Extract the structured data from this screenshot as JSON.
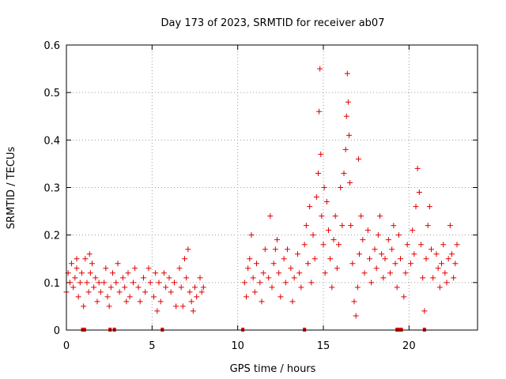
{
  "chart_data": {
    "type": "scatter",
    "title": "Day 173 of 2023, SRMTID for receiver ab07",
    "xlabel": "GPS time / hours",
    "ylabel": "SRMTID / TECUs",
    "xlim": [
      0,
      24
    ],
    "ylim": [
      0,
      0.6
    ],
    "xticks": [
      "0",
      "5",
      "10",
      "15",
      "20"
    ],
    "yticks": [
      "0",
      "0.1",
      "0.2",
      "0.3",
      "0.4",
      "0.5",
      "0.6"
    ],
    "grid": true,
    "marker": "+",
    "color": "#e00000",
    "series": [
      {
        "name": "SRMTID",
        "points": [
          [
            0.0,
            0.08
          ],
          [
            0.1,
            0.12
          ],
          [
            0.2,
            0.1
          ],
          [
            0.3,
            0.14
          ],
          [
            0.4,
            0.09
          ],
          [
            0.5,
            0.11
          ],
          [
            0.6,
            0.13
          ],
          [
            0.7,
            0.07
          ],
          [
            0.8,
            0.1
          ],
          [
            0.9,
            0.12
          ],
          [
            1.1,
            0.15
          ],
          [
            1.2,
            0.1
          ],
          [
            1.3,
            0.08
          ],
          [
            1.4,
            0.12
          ],
          [
            1.5,
            0.14
          ],
          [
            1.6,
            0.09
          ],
          [
            1.7,
            0.11
          ],
          [
            1.8,
            0.06
          ],
          [
            1.9,
            0.1
          ],
          [
            2.0,
            0.08
          ],
          [
            2.2,
            0.1
          ],
          [
            2.3,
            0.13
          ],
          [
            2.4,
            0.07
          ],
          [
            2.6,
            0.09
          ],
          [
            2.7,
            0.12
          ],
          [
            2.9,
            0.1
          ],
          [
            3.0,
            0.14
          ],
          [
            3.1,
            0.08
          ],
          [
            3.3,
            0.11
          ],
          [
            3.4,
            0.09
          ],
          [
            3.6,
            0.12
          ],
          [
            3.7,
            0.07
          ],
          [
            3.9,
            0.1
          ],
          [
            4.0,
            0.13
          ],
          [
            4.2,
            0.09
          ],
          [
            4.3,
            0.06
          ],
          [
            4.5,
            0.11
          ],
          [
            4.6,
            0.08
          ],
          [
            4.8,
            0.13
          ],
          [
            4.9,
            0.1
          ],
          [
            5.1,
            0.07
          ],
          [
            5.2,
            0.12
          ],
          [
            5.4,
            0.1
          ],
          [
            5.5,
            0.06
          ],
          [
            5.7,
            0.12
          ],
          [
            5.8,
            0.09
          ],
          [
            6.0,
            0.11
          ],
          [
            6.1,
            0.08
          ],
          [
            6.3,
            0.1
          ],
          [
            6.4,
            0.05
          ],
          [
            6.6,
            0.13
          ],
          [
            6.7,
            0.09
          ],
          [
            6.9,
            0.15
          ],
          [
            7.0,
            0.11
          ],
          [
            7.1,
            0.17
          ],
          [
            7.2,
            0.08
          ],
          [
            7.3,
            0.06
          ],
          [
            7.5,
            0.09
          ],
          [
            7.6,
            0.07
          ],
          [
            7.8,
            0.11
          ],
          [
            7.9,
            0.08
          ],
          [
            8.0,
            0.09
          ],
          [
            7.4,
            0.04
          ],
          [
            6.8,
            0.05
          ],
          [
            5.3,
            0.04
          ],
          [
            3.5,
            0.06
          ],
          [
            2.5,
            0.05
          ],
          [
            1.0,
            0.05
          ],
          [
            0.6,
            0.15
          ],
          [
            1.35,
            0.16
          ],
          [
            10.4,
            0.1
          ],
          [
            10.5,
            0.07
          ],
          [
            10.6,
            0.13
          ],
          [
            10.7,
            0.15
          ],
          [
            10.8,
            0.2
          ],
          [
            10.9,
            0.11
          ],
          [
            11.0,
            0.08
          ],
          [
            11.1,
            0.14
          ],
          [
            11.3,
            0.1
          ],
          [
            11.4,
            0.06
          ],
          [
            11.5,
            0.12
          ],
          [
            11.6,
            0.17
          ],
          [
            11.8,
            0.11
          ],
          [
            11.9,
            0.24
          ],
          [
            12.0,
            0.09
          ],
          [
            12.1,
            0.14
          ],
          [
            12.3,
            0.19
          ],
          [
            12.4,
            0.12
          ],
          [
            12.5,
            0.07
          ],
          [
            12.7,
            0.15
          ],
          [
            12.8,
            0.1
          ],
          [
            12.9,
            0.17
          ],
          [
            13.1,
            0.13
          ],
          [
            13.2,
            0.06
          ],
          [
            13.3,
            0.11
          ],
          [
            13.5,
            0.16
          ],
          [
            13.6,
            0.12
          ],
          [
            13.7,
            0.09
          ],
          [
            13.9,
            0.18
          ],
          [
            14.0,
            0.22
          ],
          [
            14.1,
            0.14
          ],
          [
            14.2,
            0.26
          ],
          [
            14.3,
            0.1
          ],
          [
            14.4,
            0.2
          ],
          [
            14.5,
            0.15
          ],
          [
            14.6,
            0.28
          ],
          [
            14.7,
            0.33
          ],
          [
            14.75,
            0.46
          ],
          [
            14.8,
            0.55
          ],
          [
            14.85,
            0.37
          ],
          [
            14.9,
            0.24
          ],
          [
            15.0,
            0.18
          ],
          [
            15.1,
            0.12
          ],
          [
            15.2,
            0.27
          ],
          [
            15.3,
            0.21
          ],
          [
            15.4,
            0.15
          ],
          [
            15.5,
            0.09
          ],
          [
            15.6,
            0.19
          ],
          [
            15.7,
            0.24
          ],
          [
            15.8,
            0.13
          ],
          [
            15.9,
            0.18
          ],
          [
            16.0,
            0.3
          ],
          [
            16.1,
            0.22
          ],
          [
            16.2,
            0.33
          ],
          [
            16.3,
            0.38
          ],
          [
            16.35,
            0.45
          ],
          [
            16.4,
            0.54
          ],
          [
            16.45,
            0.48
          ],
          [
            16.5,
            0.41
          ],
          [
            16.55,
            0.31
          ],
          [
            16.6,
            0.22
          ],
          [
            16.7,
            0.14
          ],
          [
            16.8,
            0.06
          ],
          [
            16.9,
            0.03
          ],
          [
            17.0,
            0.09
          ],
          [
            17.1,
            0.16
          ],
          [
            17.2,
            0.24
          ],
          [
            17.3,
            0.19
          ],
          [
            17.4,
            0.12
          ],
          [
            17.6,
            0.21
          ],
          [
            17.7,
            0.15
          ],
          [
            17.8,
            0.1
          ],
          [
            18.0,
            0.17
          ],
          [
            18.1,
            0.13
          ],
          [
            18.2,
            0.2
          ],
          [
            18.4,
            0.16
          ],
          [
            18.5,
            0.11
          ],
          [
            18.6,
            0.15
          ],
          [
            18.8,
            0.19
          ],
          [
            18.9,
            0.12
          ],
          [
            19.0,
            0.17
          ],
          [
            19.2,
            0.14
          ],
          [
            19.3,
            0.09
          ],
          [
            19.4,
            0.2
          ],
          [
            19.5,
            0.15
          ],
          [
            19.7,
            0.07
          ],
          [
            19.8,
            0.12
          ],
          [
            19.9,
            0.18
          ],
          [
            20.1,
            0.14
          ],
          [
            20.2,
            0.21
          ],
          [
            20.3,
            0.16
          ],
          [
            20.4,
            0.26
          ],
          [
            20.5,
            0.34
          ],
          [
            20.6,
            0.29
          ],
          [
            20.7,
            0.18
          ],
          [
            20.8,
            0.11
          ],
          [
            20.9,
            0.04
          ],
          [
            21.0,
            0.15
          ],
          [
            21.1,
            0.22
          ],
          [
            21.2,
            0.26
          ],
          [
            21.3,
            0.17
          ],
          [
            21.4,
            0.11
          ],
          [
            21.6,
            0.16
          ],
          [
            21.7,
            0.13
          ],
          [
            21.8,
            0.09
          ],
          [
            21.9,
            0.14
          ],
          [
            22.0,
            0.18
          ],
          [
            22.1,
            0.12
          ],
          [
            22.2,
            0.1
          ],
          [
            22.3,
            0.15
          ],
          [
            22.4,
            0.22
          ],
          [
            22.5,
            0.16
          ],
          [
            22.6,
            0.11
          ],
          [
            22.7,
            0.14
          ],
          [
            22.8,
            0.18
          ],
          [
            17.05,
            0.36
          ],
          [
            18.3,
            0.24
          ],
          [
            19.1,
            0.22
          ],
          [
            15.05,
            0.3
          ],
          [
            12.2,
            0.17
          ]
        ]
      }
    ],
    "baseline_markers": [
      0.95,
      1.05,
      2.55,
      2.8,
      5.6,
      10.3,
      13.9,
      19.3,
      19.45,
      19.55,
      20.9
    ]
  }
}
